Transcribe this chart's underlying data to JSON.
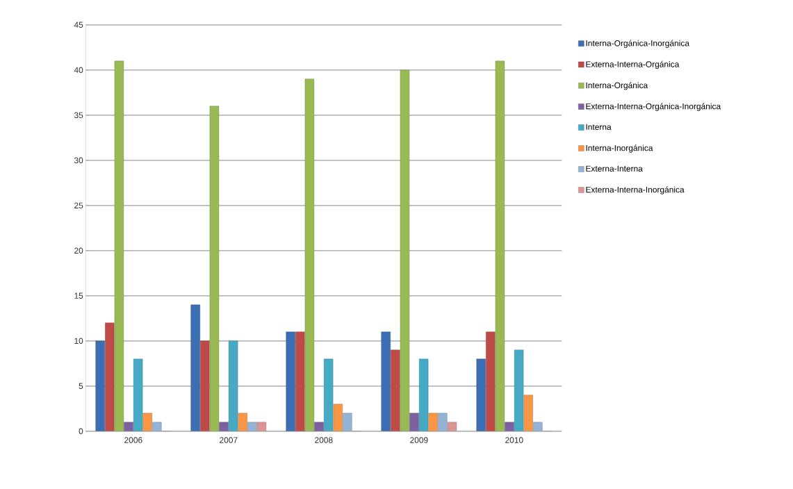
{
  "chart_data": {
    "type": "bar",
    "categories": [
      "2006",
      "2007",
      "2008",
      "2009",
      "2010"
    ],
    "series": [
      {
        "name": "Interna-Orgánica-Inorgánica",
        "color": "#3c6eb4",
        "values": [
          10,
          14,
          11,
          11,
          8
        ]
      },
      {
        "name": "Externa-Interna-Orgánica",
        "color": "#be4b48",
        "values": [
          12,
          10,
          11,
          9,
          11
        ]
      },
      {
        "name": "Interna-Orgánica",
        "color": "#98b954",
        "values": [
          41,
          36,
          39,
          40,
          41
        ]
      },
      {
        "name": "Externa-Interna-Orgánica-Inorgánica",
        "color": "#7d60a0",
        "values": [
          1,
          1,
          1,
          2,
          1
        ]
      },
      {
        "name": "Interna",
        "color": "#46aac5",
        "values": [
          8,
          10,
          8,
          8,
          9
        ]
      },
      {
        "name": "Interna-Inorgánica",
        "color": "#f79646",
        "values": [
          2,
          2,
          3,
          2,
          4
        ]
      },
      {
        "name": "Externa-Interna",
        "color": "#94b3d6",
        "values": [
          1,
          1,
          2,
          2,
          1
        ]
      },
      {
        "name": "Externa-Interna-Inorgánica",
        "color": "#d99694",
        "values": [
          0,
          1,
          0,
          1,
          0
        ]
      }
    ],
    "ylim": [
      0,
      45
    ],
    "yticks": [
      0,
      5,
      10,
      15,
      20,
      25,
      30,
      35,
      40,
      45
    ],
    "grid": "y",
    "legend": "right"
  }
}
